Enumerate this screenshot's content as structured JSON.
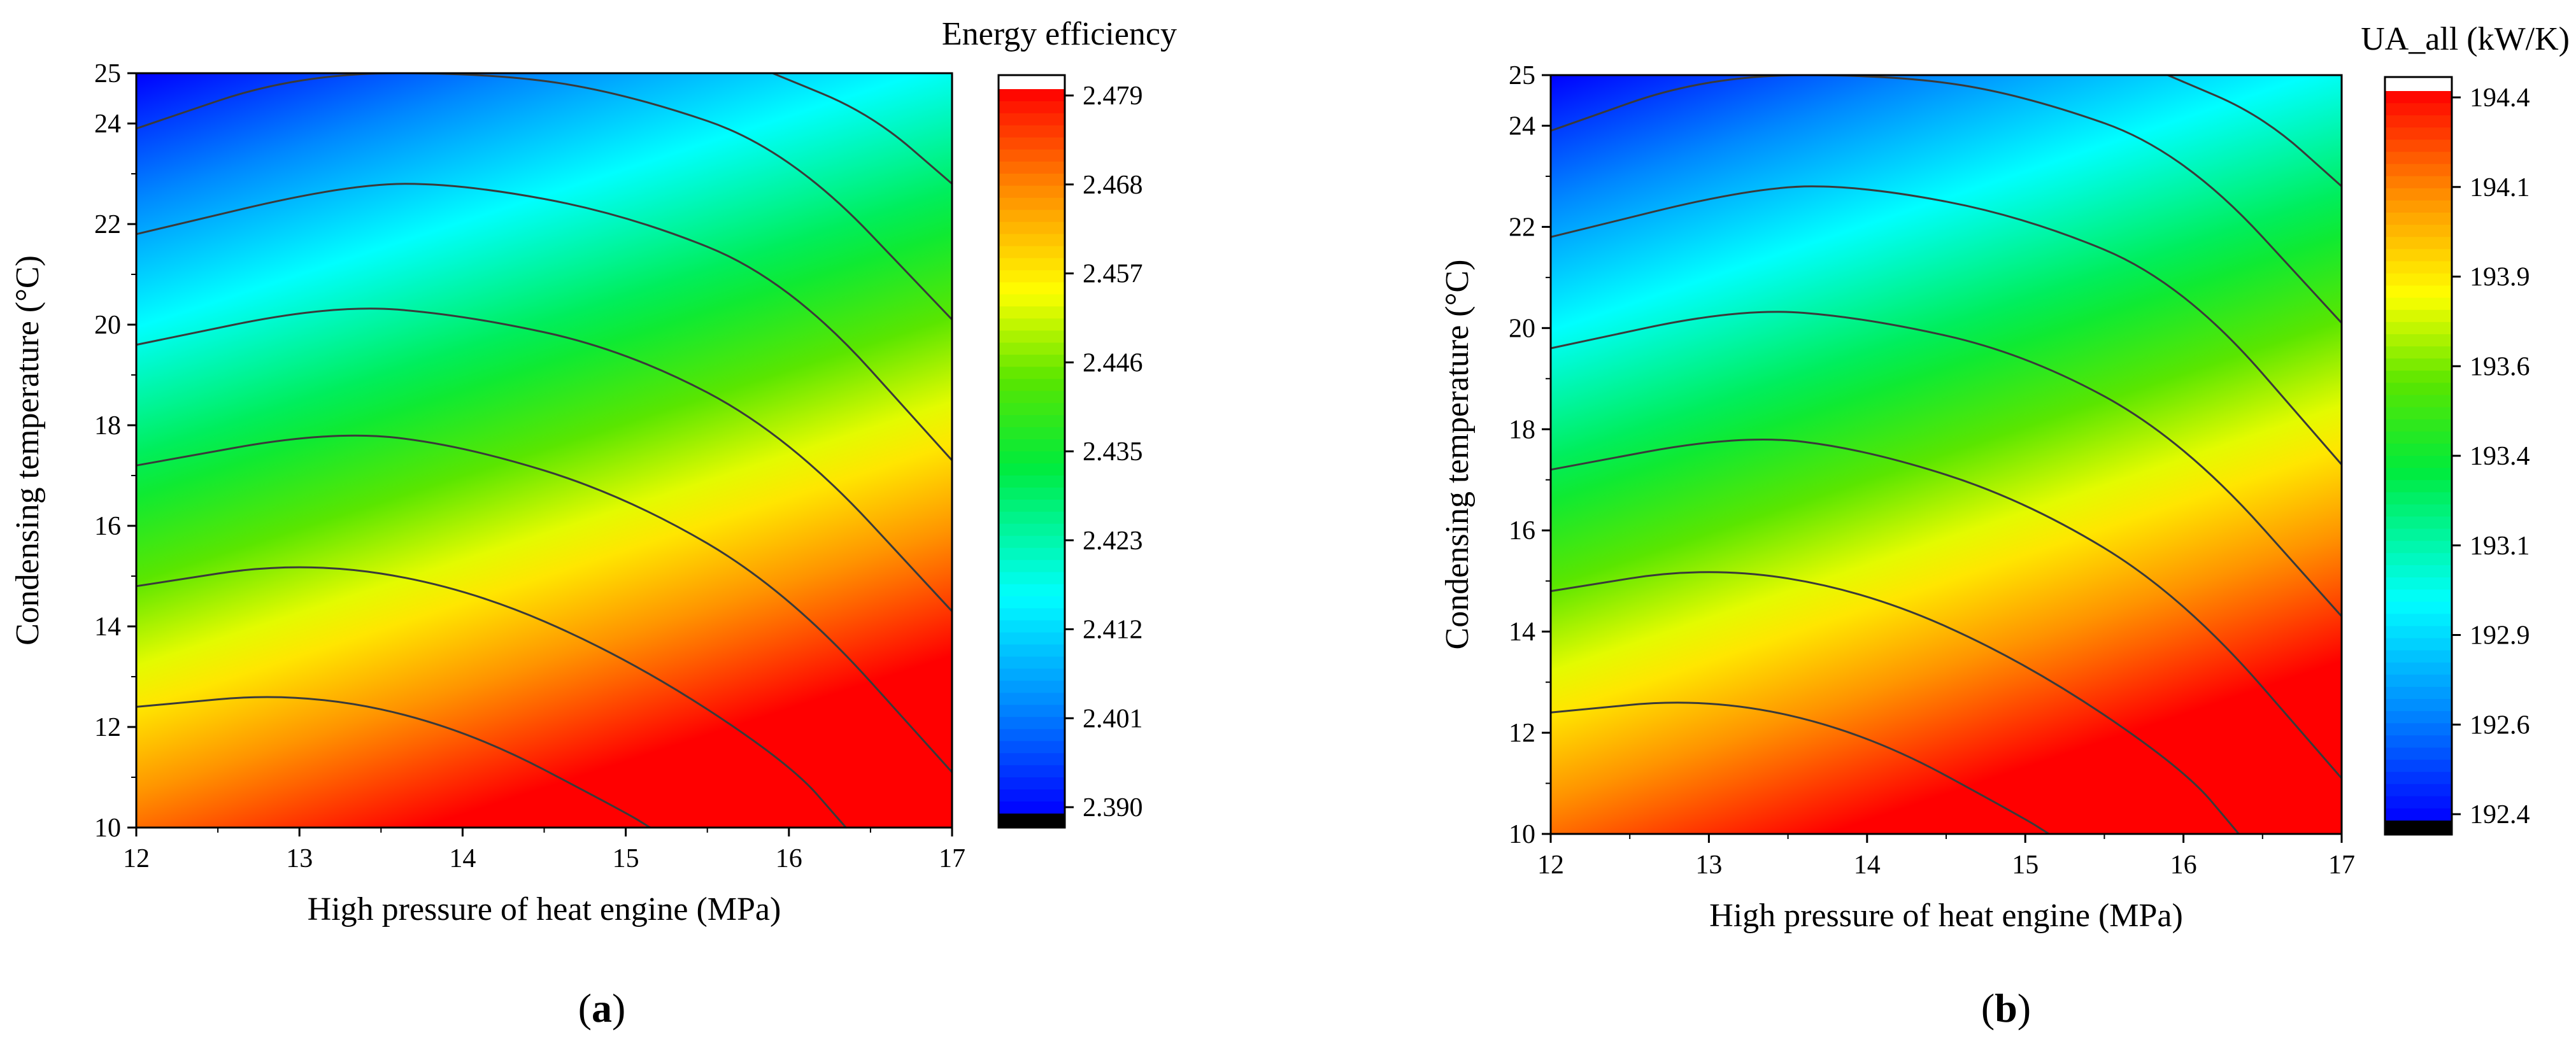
{
  "chart_data": [
    {
      "type": "heatmap",
      "subtype": "contour",
      "panel_label_text": "(a)",
      "panel_letter": "a",
      "xlabel": "High pressure of heat engine (MPa)",
      "ylabel": "Condensing temperature (°C)",
      "xlim": [
        12,
        17
      ],
      "ylim": [
        10,
        25
      ],
      "xticks": [
        "12",
        "13",
        "14",
        "15",
        "16",
        "17"
      ],
      "yticks": [
        "10",
        "12",
        "14",
        "16",
        "18",
        "20",
        "22",
        "24",
        "25"
      ],
      "colorbar_title": "Energy efficiency",
      "colorbar_range": [
        2.39,
        2.479
      ],
      "colorbar_ticks": [
        "2.479",
        "2.468",
        "2.457",
        "2.446",
        "2.435",
        "2.423",
        "2.412",
        "2.401",
        "2.390"
      ],
      "colormap_reversed": false,
      "contour_lines": [
        {
          "name": "c1",
          "points": [
            [
              12,
              12.4
            ],
            [
              13,
              12.7
            ],
            [
              14,
              12.0
            ],
            [
              15,
              10.3
            ],
            [
              15.15,
              10
            ]
          ]
        },
        {
          "name": "c2",
          "points": [
            [
              12,
              14.8
            ],
            [
              13,
              15.3
            ],
            [
              14,
              14.8
            ],
            [
              15,
              13.4
            ],
            [
              16,
              11.3
            ],
            [
              16.35,
              10
            ]
          ]
        },
        {
          "name": "c3",
          "points": [
            [
              12,
              17.2
            ],
            [
              13.2,
              17.9
            ],
            [
              14,
              17.6
            ],
            [
              15,
              16.6
            ],
            [
              16,
              14.7
            ],
            [
              17,
              11.1
            ]
          ]
        },
        {
          "name": "c4",
          "points": [
            [
              12,
              19.6
            ],
            [
              13.2,
              20.4
            ],
            [
              14,
              20.2
            ],
            [
              15,
              19.5
            ],
            [
              16,
              17.8
            ],
            [
              17,
              14.3
            ]
          ]
        },
        {
          "name": "c5",
          "points": [
            [
              12,
              21.8
            ],
            [
              13.3,
              22.8
            ],
            [
              14,
              22.8
            ],
            [
              15,
              22.2
            ],
            [
              16,
              20.9
            ],
            [
              17,
              17.3
            ]
          ]
        },
        {
          "name": "c6",
          "points": [
            [
              12,
              23.9
            ],
            [
              13,
              25
            ],
            [
              14.2,
              25
            ],
            [
              15,
              24.6
            ],
            [
              16,
              23.5
            ],
            [
              17,
              20.1
            ]
          ]
        },
        {
          "name": "c7",
          "points": [
            [
              15.9,
              25
            ],
            [
              16.5,
              24.2
            ],
            [
              17,
              22.8
            ]
          ]
        }
      ]
    },
    {
      "type": "heatmap",
      "subtype": "contour",
      "panel_label_text": "(b)",
      "panel_letter": "b",
      "xlabel": "High pressure of heat engine (MPa)",
      "ylabel": "Condensing temperature (°C)",
      "xlim": [
        12,
        17
      ],
      "ylim": [
        10,
        25
      ],
      "xticks": [
        "12",
        "13",
        "14",
        "15",
        "16",
        "17"
      ],
      "yticks": [
        "10",
        "12",
        "14",
        "16",
        "18",
        "20",
        "22",
        "24",
        "25"
      ],
      "colorbar_title": "UA_all (kW/K)",
      "colorbar_range": [
        192.4,
        194.4
      ],
      "colorbar_ticks": [
        "194.4",
        "194.1",
        "193.9",
        "193.6",
        "193.4",
        "193.1",
        "192.9",
        "192.6",
        "192.4"
      ],
      "colormap_reversed": true,
      "contour_lines": [
        {
          "name": "c1",
          "points": [
            [
              12,
              12.4
            ],
            [
              13,
              12.7
            ],
            [
              14,
              12.0
            ],
            [
              15,
              10.3
            ],
            [
              15.15,
              10
            ]
          ]
        },
        {
          "name": "c2",
          "points": [
            [
              12,
              14.8
            ],
            [
              13,
              15.3
            ],
            [
              14,
              14.8
            ],
            [
              15,
              13.4
            ],
            [
              16,
              11.3
            ],
            [
              16.35,
              10
            ]
          ]
        },
        {
          "name": "c3",
          "points": [
            [
              12,
              17.2
            ],
            [
              13.2,
              17.9
            ],
            [
              14,
              17.6
            ],
            [
              15,
              16.6
            ],
            [
              16,
              14.7
            ],
            [
              17,
              11.1
            ]
          ]
        },
        {
          "name": "c4",
          "points": [
            [
              12,
              19.6
            ],
            [
              13.2,
              20.4
            ],
            [
              14,
              20.2
            ],
            [
              15,
              19.5
            ],
            [
              16,
              17.8
            ],
            [
              17,
              14.3
            ]
          ]
        },
        {
          "name": "c5",
          "points": [
            [
              12,
              21.8
            ],
            [
              13.3,
              22.8
            ],
            [
              14,
              22.8
            ],
            [
              15,
              22.2
            ],
            [
              16,
              20.9
            ],
            [
              17,
              17.3
            ]
          ]
        },
        {
          "name": "c6",
          "points": [
            [
              12,
              23.9
            ],
            [
              13,
              25
            ],
            [
              14.2,
              25
            ],
            [
              15,
              24.6
            ],
            [
              16,
              23.5
            ],
            [
              17,
              20.1
            ]
          ]
        },
        {
          "name": "c7",
          "points": [
            [
              15.9,
              25
            ],
            [
              16.5,
              24.2
            ],
            [
              17,
              22.8
            ]
          ]
        }
      ]
    }
  ]
}
